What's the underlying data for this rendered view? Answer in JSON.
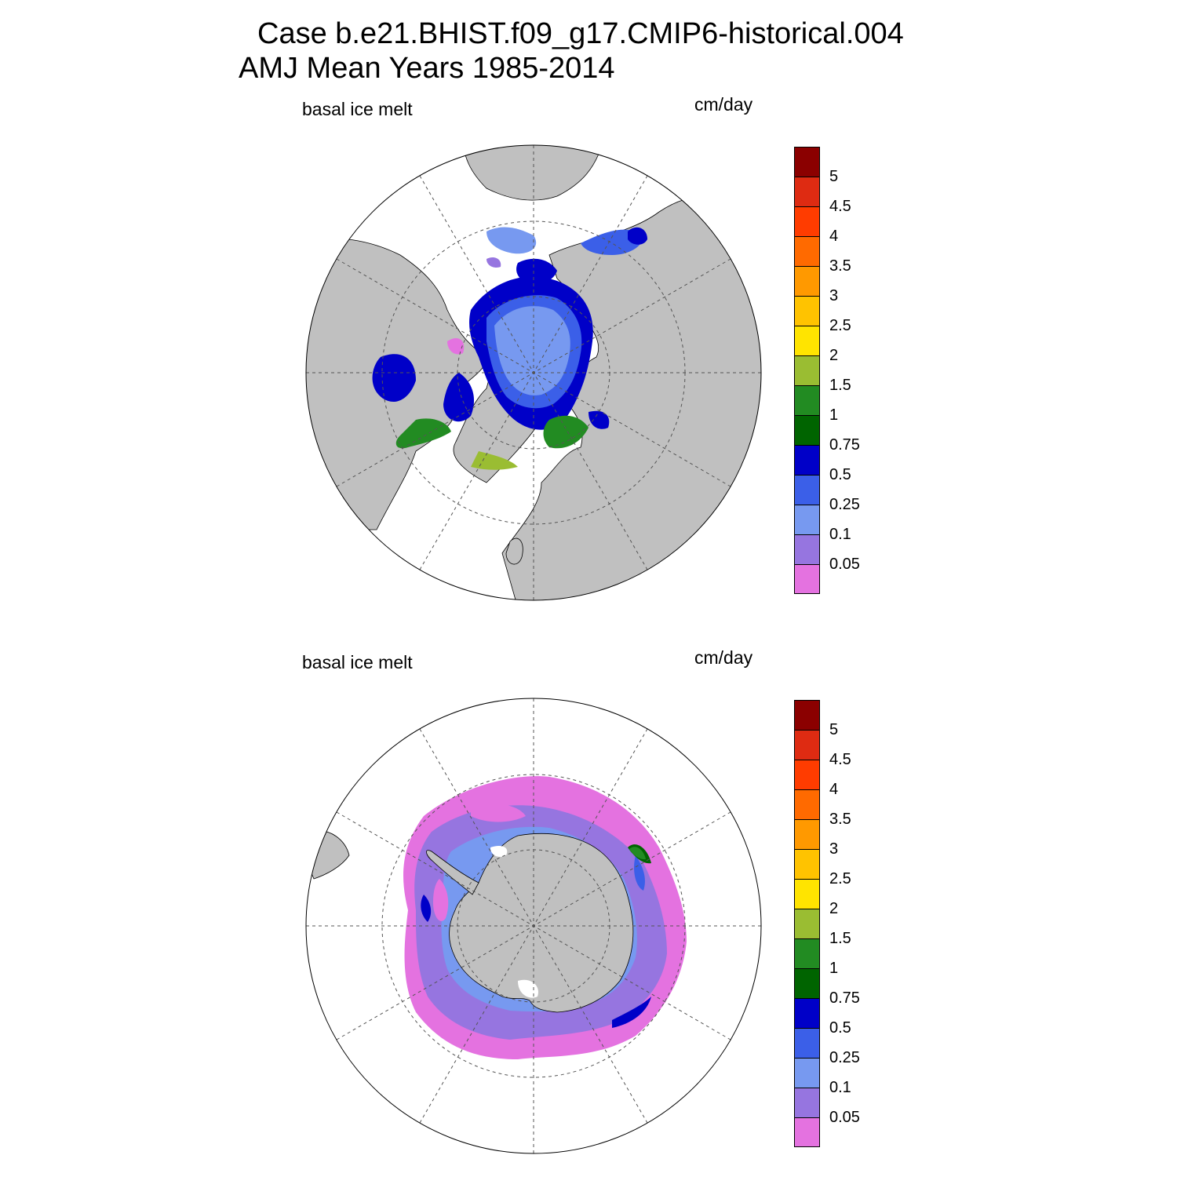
{
  "figure": {
    "title_line1": "Case b.e21.BHIST.f09_g17.CMIP6-historical.004",
    "title_line2": "AMJ Mean   Years 1985-2014"
  },
  "legend": {
    "colors": [
      "#e472e0",
      "#9675e0",
      "#7799f0",
      "#3b5fe8",
      "#0000c8",
      "#006400",
      "#228b22",
      "#9abd32",
      "#ffe400",
      "#ffc300",
      "#ff9900",
      "#ff6a00",
      "#ff3c00",
      "#de2b12",
      "#8b0000"
    ],
    "levels": [
      "0.05",
      "0.1",
      "0.25",
      "0.5",
      "0.75",
      "1",
      "1.5",
      "2",
      "2.5",
      "3",
      "3.5",
      "4",
      "4.5",
      "5"
    ]
  },
  "panels": [
    {
      "id": "north",
      "label_left": "basal ice melt",
      "label_right": "cm/day",
      "hemisphere": "Northern",
      "season": "AMJ"
    },
    {
      "id": "south",
      "label_left": "basal ice melt",
      "label_right": "cm/day",
      "hemisphere": "Southern",
      "season": "AMJ"
    }
  ],
  "colors": {
    "land": "#c0c0c0",
    "ocean": "#ffffff",
    "grid": "#555555"
  }
}
